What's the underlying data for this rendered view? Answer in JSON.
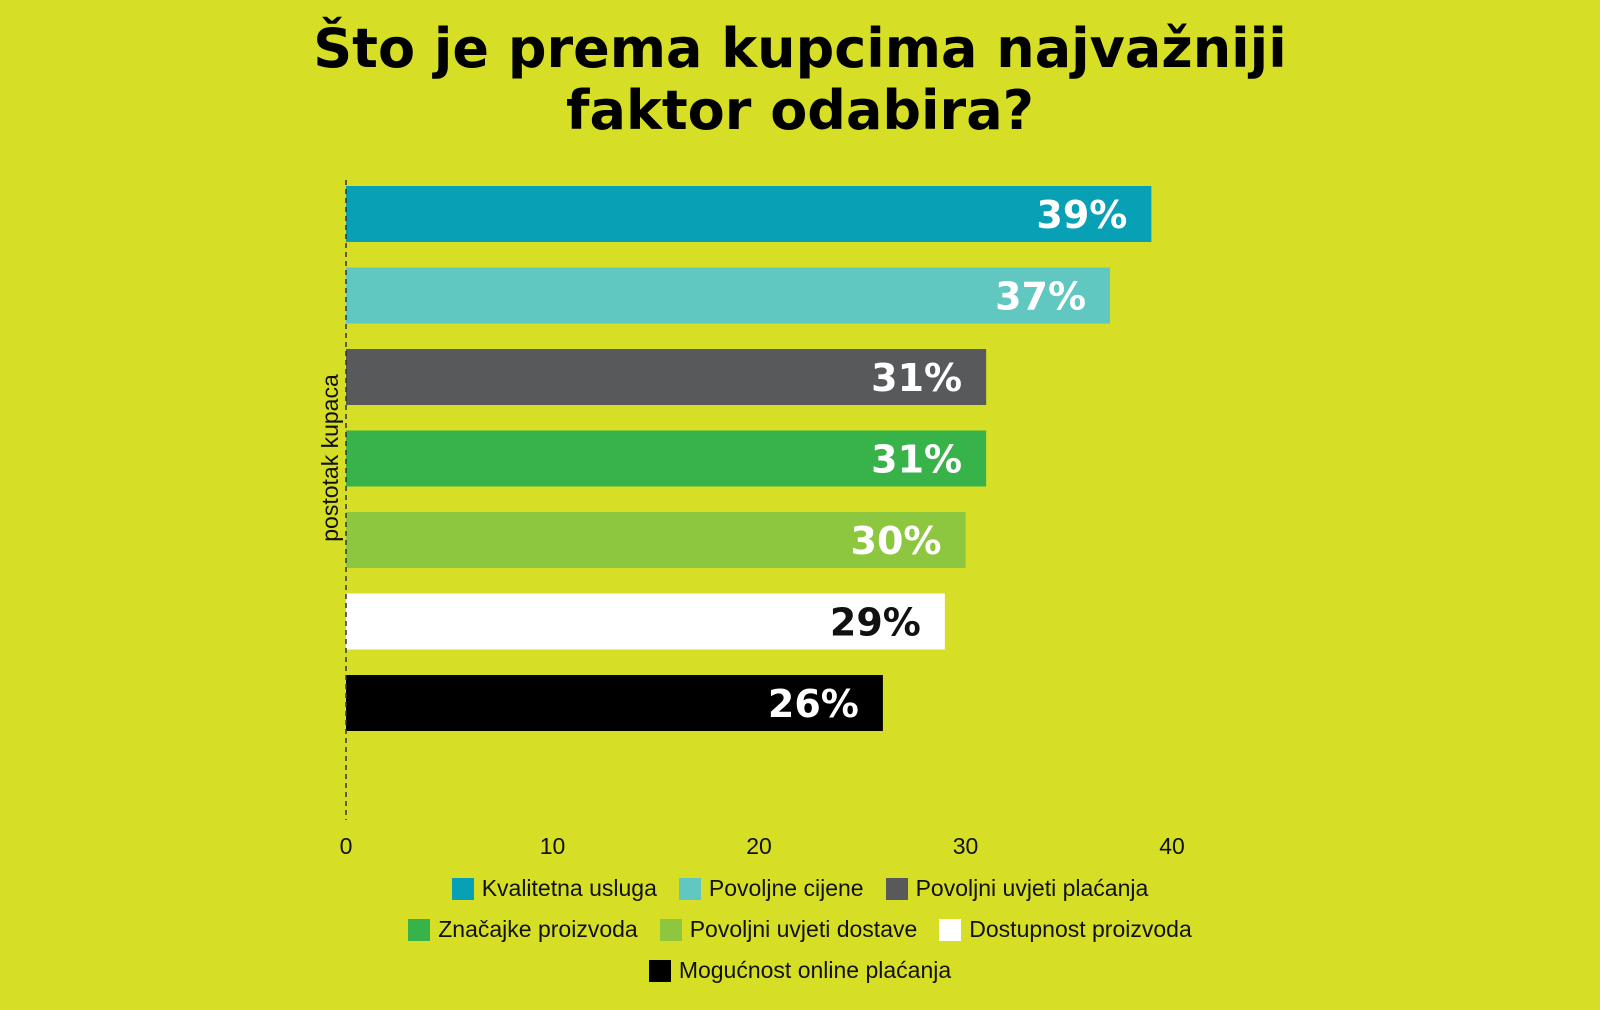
{
  "chart_data": {
    "type": "bar",
    "orientation": "horizontal",
    "title": "Što je prema kupcima najvažniji faktor odabira?",
    "title_lines": [
      "Što je prema kupcima najvažniji",
      "faktor odabira?"
    ],
    "ylabel": "postotak kupaca",
    "xlabel": "",
    "xlim": [
      0,
      40
    ],
    "xticks": [
      0,
      10,
      20,
      30,
      40
    ],
    "grid": false,
    "legend_position": "bottom",
    "series": [
      {
        "name": "Kvalitetna usluga",
        "value": 39,
        "label": "39%",
        "color": "#07a0b4",
        "label_color": "#ffffff"
      },
      {
        "name": "Povoljne cijene",
        "value": 37,
        "label": "37%",
        "color": "#60c7c1",
        "label_color": "#ffffff"
      },
      {
        "name": "Povoljni uvjeti plaćanja",
        "value": 31,
        "label": "31%",
        "color": "#58595b",
        "label_color": "#ffffff"
      },
      {
        "name": "Značajke proizvoda",
        "value": 31,
        "label": "31%",
        "color": "#37b34a",
        "label_color": "#ffffff"
      },
      {
        "name": "Povoljni uvjeti dostave",
        "value": 30,
        "label": "30%",
        "color": "#8dc63f",
        "label_color": "#ffffff"
      },
      {
        "name": "Dostupnost proizvoda",
        "value": 29,
        "label": "29%",
        "color": "#ffffff",
        "label_color": "#111111"
      },
      {
        "name": "Mogućnost online plaćanja",
        "value": 26,
        "label": "26%",
        "color": "#000000",
        "label_color": "#ffffff"
      }
    ],
    "legend_rows": [
      [
        0,
        1,
        2
      ],
      [
        3,
        4,
        5
      ],
      [
        6
      ]
    ]
  },
  "colors": {
    "background": "#d6df26",
    "axis": "#333333"
  }
}
